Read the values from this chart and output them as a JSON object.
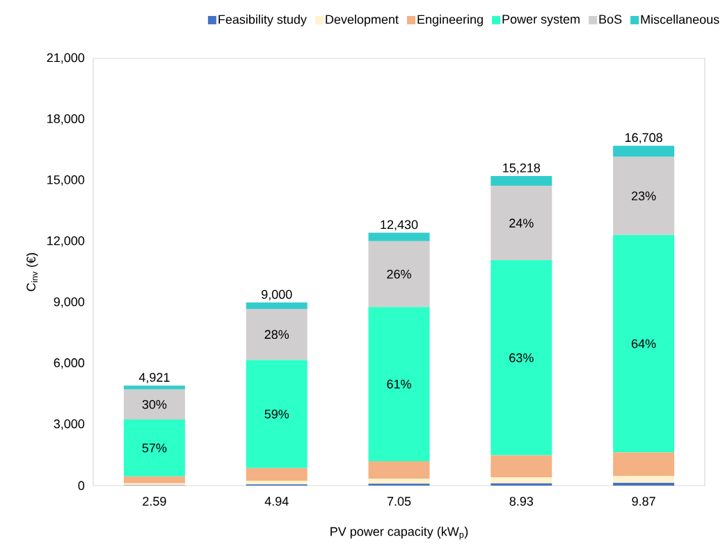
{
  "chart_data": {
    "type": "bar",
    "stacked": true,
    "xlabel": "PV power capacity (kW$_{p}$)",
    "ylabel": "C$_{inv}$ (€)",
    "categories": [
      "2.59",
      "4.94",
      "7.05",
      "8.93",
      "9.87"
    ],
    "series": [
      {
        "name": "Feasibility study",
        "color": "#4472c4",
        "values": [
          20,
          60,
          90,
          110,
          140
        ]
      },
      {
        "name": "Development",
        "color": "#fff2cc",
        "values": [
          90,
          180,
          250,
          300,
          330
        ]
      },
      {
        "name": "Engineering",
        "color": "#f4b183",
        "values": [
          340,
          620,
          860,
          1080,
          1160
        ]
      },
      {
        "name": "Power system",
        "color": "#2cffc8",
        "values": [
          2800,
          5310,
          7580,
          9590,
          10690
        ]
      },
      {
        "name": "BoS",
        "color": "#d0cece",
        "values": [
          1480,
          2520,
          3230,
          3650,
          3840
        ]
      },
      {
        "name": "Miscellaneous",
        "color": "#33cccc",
        "values": [
          190,
          310,
          420,
          490,
          550
        ]
      }
    ],
    "totals": [
      "4,921",
      "9,000",
      "12,430",
      "15,218",
      "16,708"
    ],
    "annotations": [
      "57%",
      "59%",
      "61%",
      "63%",
      "64%",
      "30%",
      "28%",
      "26%",
      "24%",
      "23%"
    ],
    "ylim": [
      0,
      21000
    ],
    "yticks": [
      {
        "value": 0,
        "label": "0"
      },
      {
        "value": 3000,
        "label": "3,000"
      },
      {
        "value": 6000,
        "label": "6,000"
      },
      {
        "value": 9000,
        "label": "9,000"
      },
      {
        "value": 12000,
        "label": "12,000"
      },
      {
        "value": 15000,
        "label": "15,000"
      },
      {
        "value": 18000,
        "label": "18,000"
      },
      {
        "value": 21000,
        "label": "21,000"
      }
    ],
    "legend": "top"
  }
}
